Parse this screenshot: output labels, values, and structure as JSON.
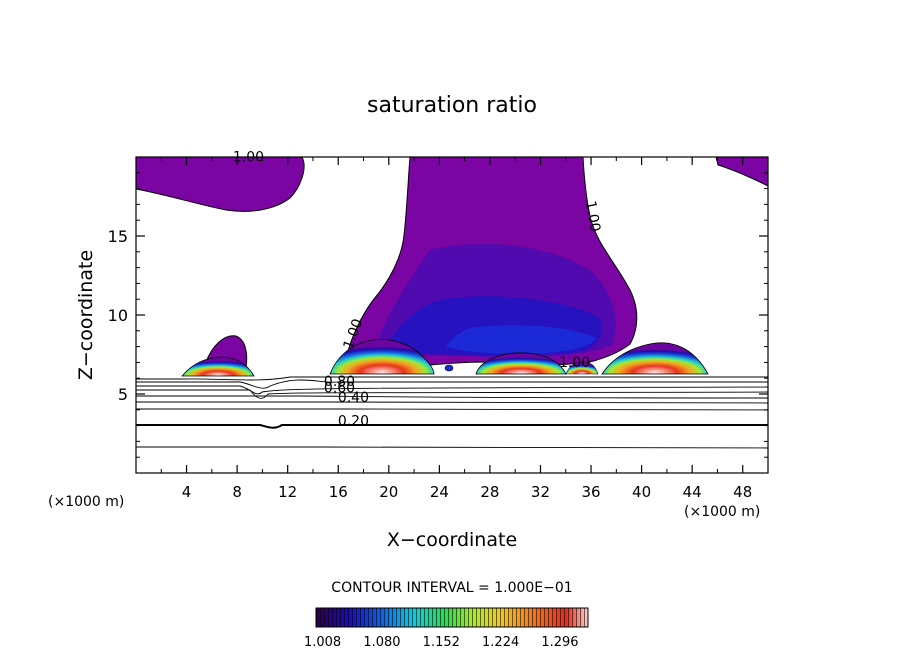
{
  "chart_data": {
    "type": "contour",
    "title": "saturation ratio",
    "xlabel": "X−coordinate",
    "ylabel": "Z−coordinate",
    "x_unit_left": "(×1000 m)",
    "x_unit_right": "(×1000 m)",
    "xlim": [
      0,
      50
    ],
    "ylim": [
      0,
      20
    ],
    "x_ticks": [
      4,
      8,
      12,
      16,
      20,
      24,
      28,
      32,
      36,
      40,
      44,
      48
    ],
    "y_ticks": [
      5,
      10,
      15
    ],
    "contour_interval_label": "CONTOUR INTERVAL = 1.000E−01",
    "colorbar_ticks": [
      "1.008",
      "1.080",
      "1.152",
      "1.224",
      "1.296"
    ],
    "colorbar_range": [
      1.0,
      1.33
    ],
    "contour_labels": [
      {
        "text": "1.00",
        "x": 8.9,
        "y": 19.7
      },
      {
        "text": "1.00",
        "x": 35.8,
        "y": 16.2
      },
      {
        "text": "1.00",
        "x": 17.5,
        "y": 8.7
      },
      {
        "text": "1.00",
        "x": 34.7,
        "y": 6.7
      },
      {
        "text": "0.80",
        "x": 16.1,
        "y": 5.5
      },
      {
        "text": "0.60",
        "x": 16.1,
        "y": 5.1
      },
      {
        "text": "0.40",
        "x": 17.2,
        "y": 4.5
      },
      {
        "text": "0.20",
        "x": 17.2,
        "y": 3.0
      }
    ],
    "grid": false
  },
  "colors": {
    "colormap": [
      "#2b0049",
      "#1c0bb0",
      "#0f5fe0",
      "#15c9d8",
      "#32d84a",
      "#aee832",
      "#f0c628",
      "#f07622",
      "#e02c1e",
      "#ffffff"
    ],
    "supersaturated_region": "#7b05a3"
  }
}
